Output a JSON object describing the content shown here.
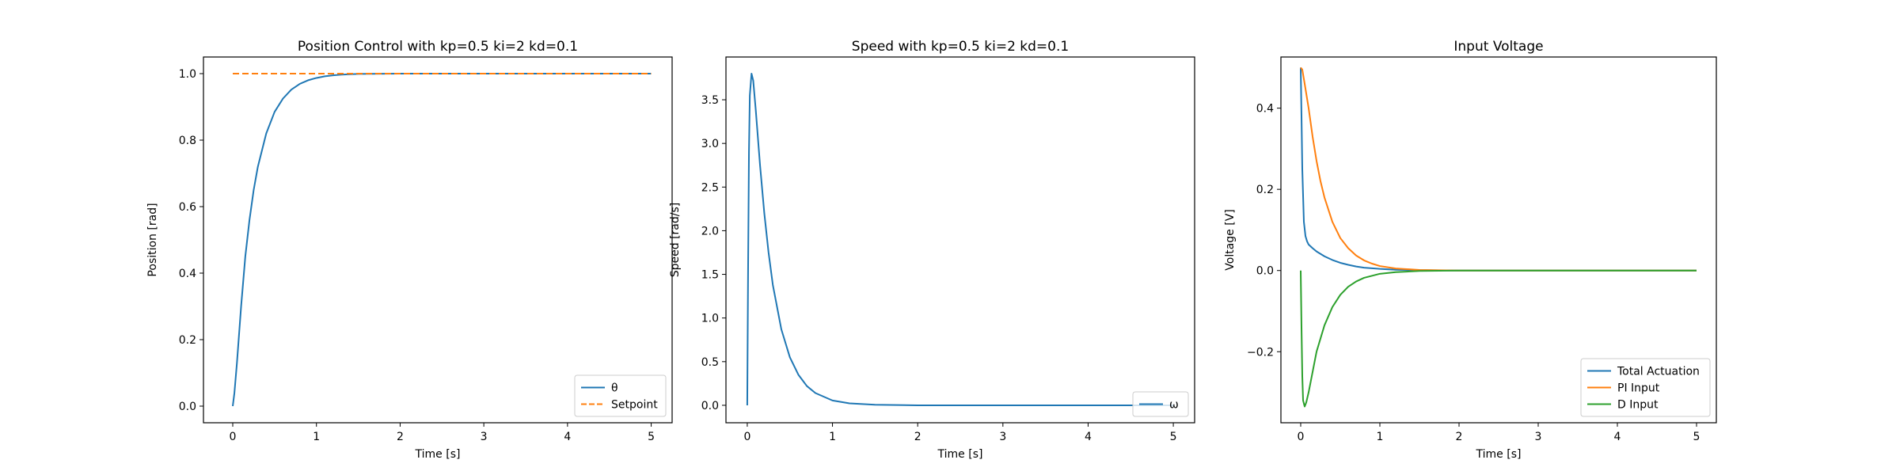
{
  "colors": {
    "blue": "#1f77b4",
    "orange": "#ff7f0e",
    "green": "#2ca02c"
  },
  "chart_data": [
    {
      "type": "line",
      "title": "Position Control with kp=0.5 ki=2 kd=0.1",
      "xlabel": "Time [s]",
      "ylabel": "Position [rad]",
      "xlim": [
        -0.35,
        5.25
      ],
      "ylim": [
        -0.05,
        1.05
      ],
      "xticks": [
        0,
        1,
        2,
        3,
        4,
        5
      ],
      "xtick_labels": [
        "0",
        "1",
        "2",
        "3",
        "4",
        "5"
      ],
      "yticks": [
        0.0,
        0.2,
        0.4,
        0.6,
        0.8,
        1.0
      ],
      "ytick_labels": [
        "0.0",
        "0.2",
        "0.4",
        "0.6",
        "0.8",
        "1.0"
      ],
      "grid": false,
      "legend_position": "lower-right",
      "series": [
        {
          "name": "θ",
          "color": "blue",
          "dash": "solid",
          "x": [
            0,
            0.02,
            0.05,
            0.1,
            0.15,
            0.2,
            0.25,
            0.3,
            0.4,
            0.5,
            0.6,
            0.7,
            0.8,
            0.9,
            1.0,
            1.1,
            1.2,
            1.3,
            1.5,
            2.0,
            3.0,
            4.0,
            5.0
          ],
          "y": [
            0.0,
            0.04,
            0.13,
            0.3,
            0.45,
            0.56,
            0.65,
            0.72,
            0.82,
            0.885,
            0.925,
            0.952,
            0.969,
            0.98,
            0.987,
            0.992,
            0.995,
            0.997,
            0.999,
            1.0,
            1.0,
            1.0,
            1.0
          ]
        },
        {
          "name": "Setpoint",
          "color": "orange",
          "dash": "dashed",
          "x": [
            0,
            5
          ],
          "y": [
            1.0,
            1.0
          ]
        }
      ]
    },
    {
      "type": "line",
      "title": "Speed with kp=0.5 ki=2 kd=0.1",
      "xlabel": "Time [s]",
      "ylabel": "Speed [rad/s]",
      "xlim": [
        -0.25,
        5.25
      ],
      "ylim": [
        -0.2,
        3.99
      ],
      "xticks": [
        0,
        1,
        2,
        3,
        4,
        5
      ],
      "xtick_labels": [
        "0",
        "1",
        "2",
        "3",
        "4",
        "5"
      ],
      "yticks": [
        0.0,
        0.5,
        1.0,
        1.5,
        2.0,
        2.5,
        3.0,
        3.5
      ],
      "ytick_labels": [
        "0.0",
        "0.5",
        "1.0",
        "1.5",
        "2.0",
        "2.5",
        "3.0",
        "3.5"
      ],
      "grid": false,
      "legend_position": "lower-right",
      "series": [
        {
          "name": "ω",
          "color": "blue",
          "dash": "solid",
          "x": [
            0,
            0.01,
            0.02,
            0.03,
            0.05,
            0.07,
            0.1,
            0.15,
            0.2,
            0.25,
            0.3,
            0.4,
            0.5,
            0.6,
            0.7,
            0.8,
            1.0,
            1.2,
            1.5,
            2.0,
            3.0,
            4.0,
            5.0
          ],
          "y": [
            0.0,
            1.6,
            2.9,
            3.55,
            3.8,
            3.72,
            3.38,
            2.75,
            2.2,
            1.75,
            1.38,
            0.87,
            0.55,
            0.35,
            0.22,
            0.14,
            0.055,
            0.022,
            0.006,
            0.0,
            0.0,
            0.0,
            0.0
          ]
        }
      ]
    },
    {
      "type": "line",
      "title": "Input Voltage",
      "xlabel": "Time [s]",
      "ylabel": "Voltage [V]",
      "xlim": [
        -0.25,
        5.25
      ],
      "ylim": [
        -0.375,
        0.526
      ],
      "xticks": [
        0,
        1,
        2,
        3,
        4,
        5
      ],
      "xtick_labels": [
        "0",
        "1",
        "2",
        "3",
        "4",
        "5"
      ],
      "yticks": [
        -0.2,
        0.0,
        0.2,
        0.4
      ],
      "ytick_labels": [
        "−0.2",
        "0.0",
        "0.2",
        "0.4"
      ],
      "grid": false,
      "legend_position": "lower-right",
      "series": [
        {
          "name": "Total Actuation",
          "color": "blue",
          "dash": "solid",
          "x": [
            0,
            0.01,
            0.02,
            0.04,
            0.06,
            0.08,
            0.1,
            0.15,
            0.2,
            0.3,
            0.4,
            0.5,
            0.6,
            0.7,
            0.8,
            1.0,
            1.2,
            1.5,
            2.0,
            3.0,
            4.0,
            5.0
          ],
          "y": [
            0.5,
            0.38,
            0.25,
            0.12,
            0.085,
            0.072,
            0.064,
            0.055,
            0.047,
            0.035,
            0.026,
            0.019,
            0.014,
            0.01,
            0.007,
            0.004,
            0.002,
            0.001,
            0.0,
            0.0,
            0.0,
            0.0
          ]
        },
        {
          "name": "PI Input",
          "color": "orange",
          "dash": "solid",
          "x": [
            0,
            0.02,
            0.05,
            0.1,
            0.15,
            0.2,
            0.25,
            0.3,
            0.4,
            0.5,
            0.6,
            0.7,
            0.8,
            0.9,
            1.0,
            1.2,
            1.5,
            2.0,
            3.0,
            4.0,
            5.0
          ],
          "y": [
            0.5,
            0.495,
            0.46,
            0.4,
            0.33,
            0.27,
            0.22,
            0.18,
            0.12,
            0.08,
            0.055,
            0.037,
            0.025,
            0.017,
            0.011,
            0.005,
            0.0015,
            0.0,
            0.0,
            0.0,
            0.0
          ]
        },
        {
          "name": "D Input",
          "color": "green",
          "dash": "solid",
          "x": [
            0,
            0.01,
            0.02,
            0.03,
            0.05,
            0.07,
            0.1,
            0.15,
            0.2,
            0.3,
            0.4,
            0.5,
            0.6,
            0.7,
            0.8,
            1.0,
            1.2,
            1.5,
            2.0,
            3.0,
            4.0,
            5.0
          ],
          "y": [
            0.0,
            -0.14,
            -0.26,
            -0.32,
            -0.335,
            -0.325,
            -0.3,
            -0.25,
            -0.2,
            -0.135,
            -0.09,
            -0.06,
            -0.04,
            -0.027,
            -0.018,
            -0.008,
            -0.004,
            -0.001,
            0.0,
            0.0,
            0.0,
            0.0
          ]
        }
      ]
    }
  ]
}
